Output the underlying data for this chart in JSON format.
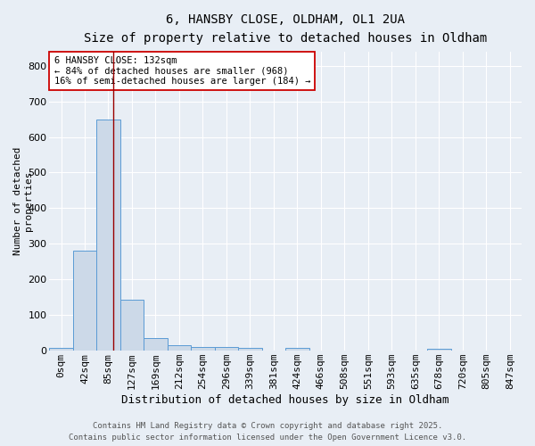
{
  "title1": "6, HANSBY CLOSE, OLDHAM, OL1 2UA",
  "title2": "Size of property relative to detached houses in Oldham",
  "xlabel": "Distribution of detached houses by size in Oldham",
  "ylabel": "Number of detached\nproperties",
  "bar_color": "#ccd9e8",
  "bar_edge_color": "#5b9bd5",
  "categories": [
    "0sqm",
    "42sqm",
    "85sqm",
    "127sqm",
    "169sqm",
    "212sqm",
    "254sqm",
    "296sqm",
    "339sqm",
    "381sqm",
    "424sqm",
    "466sqm",
    "508sqm",
    "551sqm",
    "593sqm",
    "635sqm",
    "678sqm",
    "720sqm",
    "805sqm",
    "847sqm"
  ],
  "values": [
    8,
    280,
    648,
    142,
    36,
    16,
    10,
    10,
    8,
    0,
    8,
    0,
    0,
    0,
    0,
    0,
    6,
    0,
    0,
    0
  ],
  "ylim": [
    0,
    840
  ],
  "yticks": [
    0,
    100,
    200,
    300,
    400,
    500,
    600,
    700,
    800
  ],
  "vline_x_index": 2.72,
  "vline_color": "#990000",
  "annotation_text": "6 HANSBY CLOSE: 132sqm\n← 84% of detached houses are smaller (968)\n16% of semi-detached houses are larger (184) →",
  "annotation_box_color": "#ffffff",
  "annotation_border_color": "#cc0000",
  "footer1": "Contains HM Land Registry data © Crown copyright and database right 2025.",
  "footer2": "Contains public sector information licensed under the Open Government Licence v3.0.",
  "background_color": "#e8eef5",
  "grid_color": "#ffffff",
  "title1_fontsize": 10,
  "title2_fontsize": 9,
  "xlabel_fontsize": 9,
  "ylabel_fontsize": 8,
  "tick_fontsize": 8,
  "annotation_fontsize": 7.5,
  "footer_fontsize": 6.5
}
